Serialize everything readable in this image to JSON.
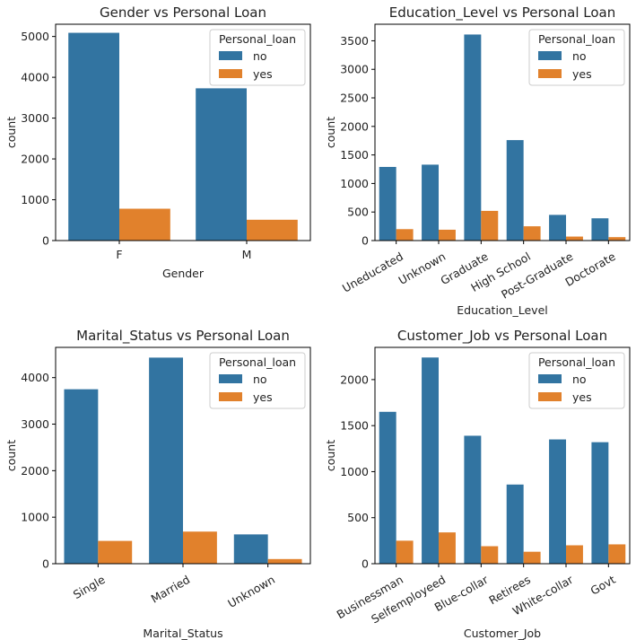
{
  "legend": {
    "title": "Personal_loan",
    "labels": [
      "no",
      "yes"
    ]
  },
  "colors": {
    "no": "#3274a1",
    "yes": "#e1812c"
  },
  "chart_data": [
    {
      "type": "bar",
      "title": "Gender vs Personal Loan",
      "xlabel": "Gender",
      "ylabel": "count",
      "categories": [
        "F",
        "M"
      ],
      "series": [
        {
          "name": "no",
          "values": [
            5090,
            3730
          ]
        },
        {
          "name": "yes",
          "values": [
            780,
            510
          ]
        }
      ],
      "ylim": [
        0,
        5300
      ],
      "yticks": [
        0,
        1000,
        2000,
        3000,
        4000,
        5000
      ],
      "xtick_rotation": 0,
      "legend_position": "top-right",
      "grid": false
    },
    {
      "type": "bar",
      "title": "Education_Level vs Personal Loan",
      "xlabel": "Education_Level",
      "ylabel": "count",
      "categories": [
        "Uneducated",
        "Unknown",
        "Graduate",
        "High School",
        "Post-Graduate",
        "Doctorate"
      ],
      "series": [
        {
          "name": "no",
          "values": [
            1290,
            1330,
            3610,
            1760,
            450,
            390
          ]
        },
        {
          "name": "yes",
          "values": [
            200,
            190,
            520,
            250,
            70,
            60
          ]
        }
      ],
      "ylim": [
        0,
        3790
      ],
      "yticks": [
        0,
        500,
        1000,
        1500,
        2000,
        2500,
        3000,
        3500
      ],
      "xtick_rotation": -30,
      "legend_position": "top-right",
      "grid": false
    },
    {
      "type": "bar",
      "title": "Marital_Status vs Personal Loan",
      "xlabel": "Marital_Status",
      "ylabel": "count",
      "categories": [
        "Single",
        "Married",
        "Unknown"
      ],
      "series": [
        {
          "name": "no",
          "values": [
            3750,
            4430,
            630
          ]
        },
        {
          "name": "yes",
          "values": [
            490,
            690,
            100
          ]
        }
      ],
      "ylim": [
        0,
        4650
      ],
      "yticks": [
        0,
        1000,
        2000,
        3000,
        4000
      ],
      "xtick_rotation": -30,
      "legend_position": "top-right",
      "grid": false
    },
    {
      "type": "bar",
      "title": "Customer_Job vs Personal Loan",
      "xlabel": "Customer_Job",
      "ylabel": "count",
      "categories": [
        "Businessman",
        "Selfemployeed",
        "Blue-collar",
        "Retirees",
        "White-collar",
        "Govt"
      ],
      "series": [
        {
          "name": "no",
          "values": [
            1650,
            2240,
            1390,
            860,
            1350,
            1320
          ]
        },
        {
          "name": "yes",
          "values": [
            250,
            340,
            190,
            130,
            200,
            210
          ]
        }
      ],
      "ylim": [
        0,
        2350
      ],
      "yticks": [
        0,
        500,
        1000,
        1500,
        2000
      ],
      "xtick_rotation": -30,
      "legend_position": "top-right",
      "grid": false
    }
  ]
}
